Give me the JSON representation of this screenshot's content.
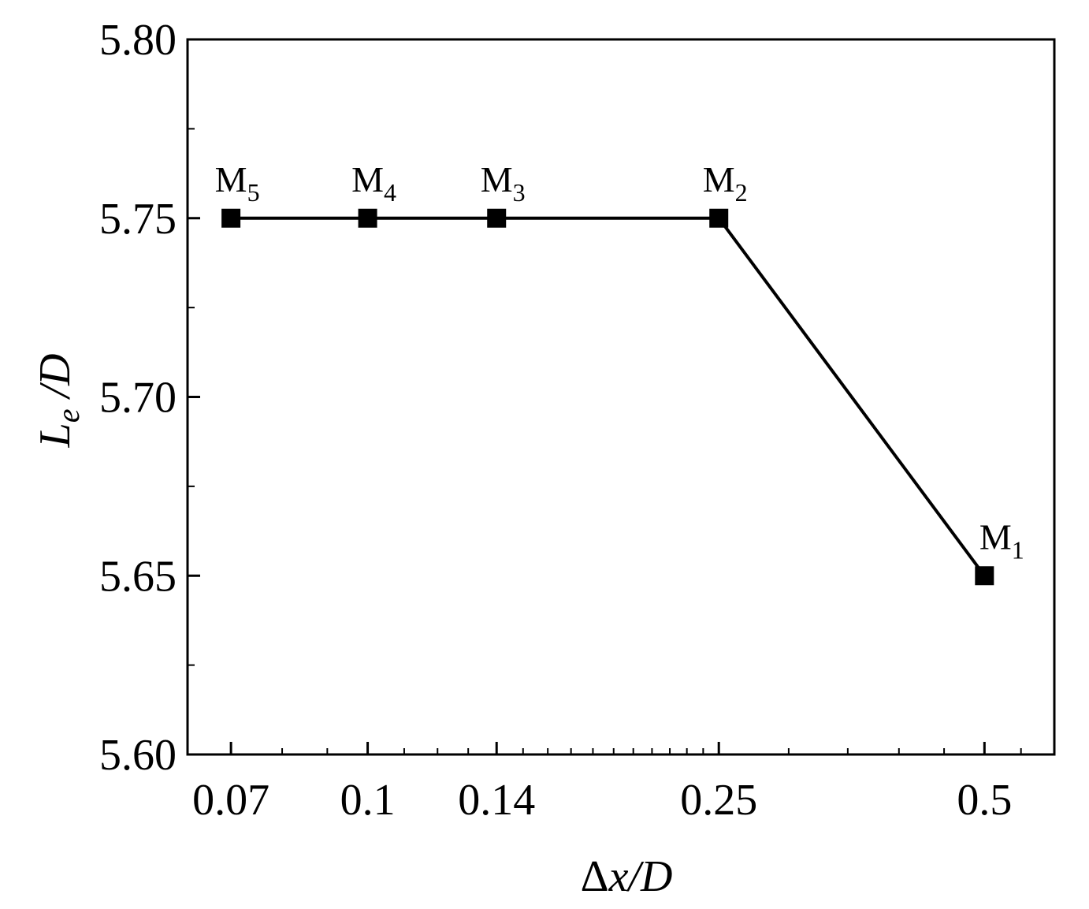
{
  "chart_data": {
    "type": "line",
    "title": "",
    "xlabel": "Δx/D",
    "ylabel": "Le /D",
    "xlabel_parts": {
      "delta": "Δ",
      "var": "x",
      "rest": "/D"
    },
    "ylabel_parts": {
      "main": "L",
      "sub": "e",
      "rest": " /D"
    },
    "x_scale": "log",
    "xlim": [
      0.0625,
      0.6
    ],
    "ylim": [
      5.6,
      5.8
    ],
    "x_ticks": [
      0.07,
      0.1,
      0.14,
      0.25,
      0.5
    ],
    "x_tick_labels": [
      "0.07",
      "0.1",
      "0.14",
      "0.25",
      "0.5"
    ],
    "y_ticks": [
      5.6,
      5.65,
      5.7,
      5.75,
      5.8
    ],
    "y_tick_labels": [
      "5.60",
      "5.65",
      "5.70",
      "5.75",
      "5.80"
    ],
    "grid": false,
    "series": [
      {
        "color": "#000000",
        "marker": "square",
        "points": [
          {
            "x": 0.07,
            "y": 5.75,
            "label": "M",
            "label_sub": "5"
          },
          {
            "x": 0.1,
            "y": 5.75,
            "label": "M",
            "label_sub": "4"
          },
          {
            "x": 0.14,
            "y": 5.75,
            "label": "M",
            "label_sub": "3"
          },
          {
            "x": 0.25,
            "y": 5.75,
            "label": "M",
            "label_sub": "2"
          },
          {
            "x": 0.5,
            "y": 5.65,
            "label": "M",
            "label_sub": "1"
          }
        ]
      }
    ]
  }
}
